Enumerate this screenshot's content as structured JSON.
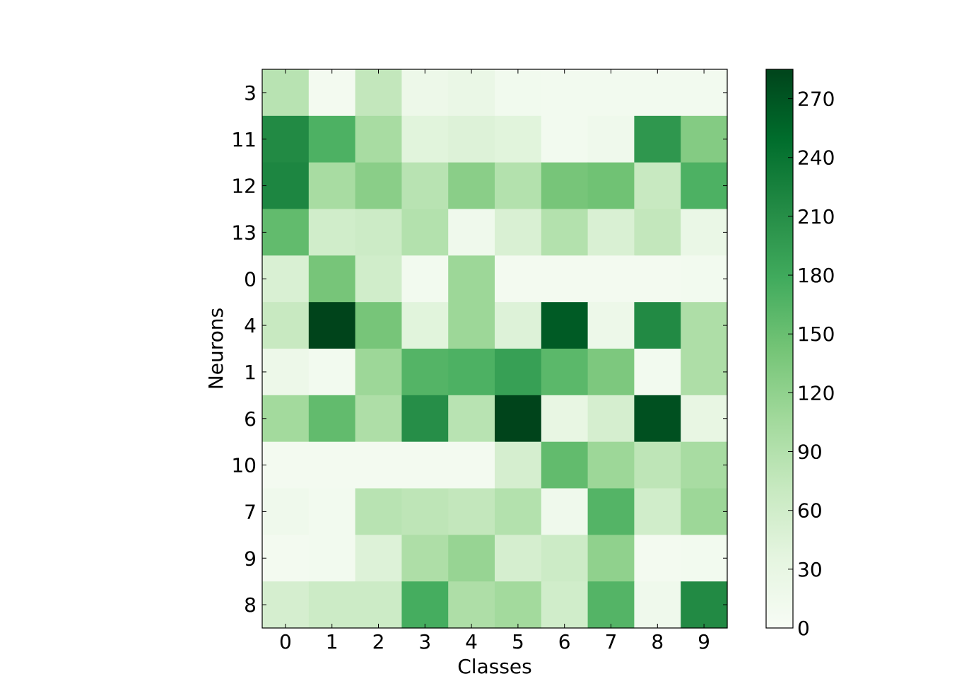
{
  "chart_data": {
    "type": "heatmap",
    "title": "",
    "xlabel": "Classes",
    "ylabel": "Neurons",
    "x_categories": [
      "0",
      "1",
      "2",
      "3",
      "4",
      "5",
      "6",
      "7",
      "8",
      "9"
    ],
    "y_categories": [
      "3",
      "11",
      "12",
      "13",
      "0",
      "4",
      "1",
      "6",
      "10",
      "7",
      "9",
      "8"
    ],
    "values": [
      [
        85,
        8,
        75,
        20,
        25,
        12,
        10,
        10,
        10,
        10
      ],
      [
        215,
        170,
        100,
        40,
        45,
        40,
        10,
        15,
        200,
        130
      ],
      [
        220,
        100,
        125,
        85,
        125,
        90,
        140,
        145,
        70,
        170
      ],
      [
        155,
        60,
        65,
        90,
        15,
        50,
        90,
        50,
        75,
        25
      ],
      [
        50,
        140,
        60,
        10,
        110,
        8,
        8,
        8,
        8,
        10
      ],
      [
        70,
        285,
        140,
        40,
        110,
        45,
        265,
        20,
        215,
        95
      ],
      [
        20,
        10,
        110,
        165,
        170,
        190,
        160,
        135,
        10,
        95
      ],
      [
        105,
        155,
        95,
        210,
        85,
        285,
        30,
        55,
        275,
        30
      ],
      [
        8,
        8,
        8,
        8,
        8,
        55,
        155,
        110,
        80,
        100
      ],
      [
        15,
        10,
        85,
        80,
        75,
        90,
        15,
        165,
        60,
        110
      ],
      [
        8,
        10,
        45,
        95,
        115,
        55,
        65,
        120,
        8,
        10
      ],
      [
        55,
        65,
        65,
        175,
        95,
        105,
        60,
        165,
        15,
        215
      ]
    ],
    "colorbar": {
      "min": 0,
      "max": 285,
      "ticks": [
        "0",
        "30",
        "60",
        "90",
        "120",
        "150",
        "180",
        "210",
        "240",
        "270"
      ],
      "colormap": "Greens",
      "colors": [
        "#f7fcf5",
        "#e5f5e0",
        "#c7e9c0",
        "#a1d99b",
        "#74c476",
        "#41ab5d",
        "#238b45",
        "#006d2c",
        "#00441b"
      ]
    },
    "grid": false,
    "legend": "none"
  }
}
